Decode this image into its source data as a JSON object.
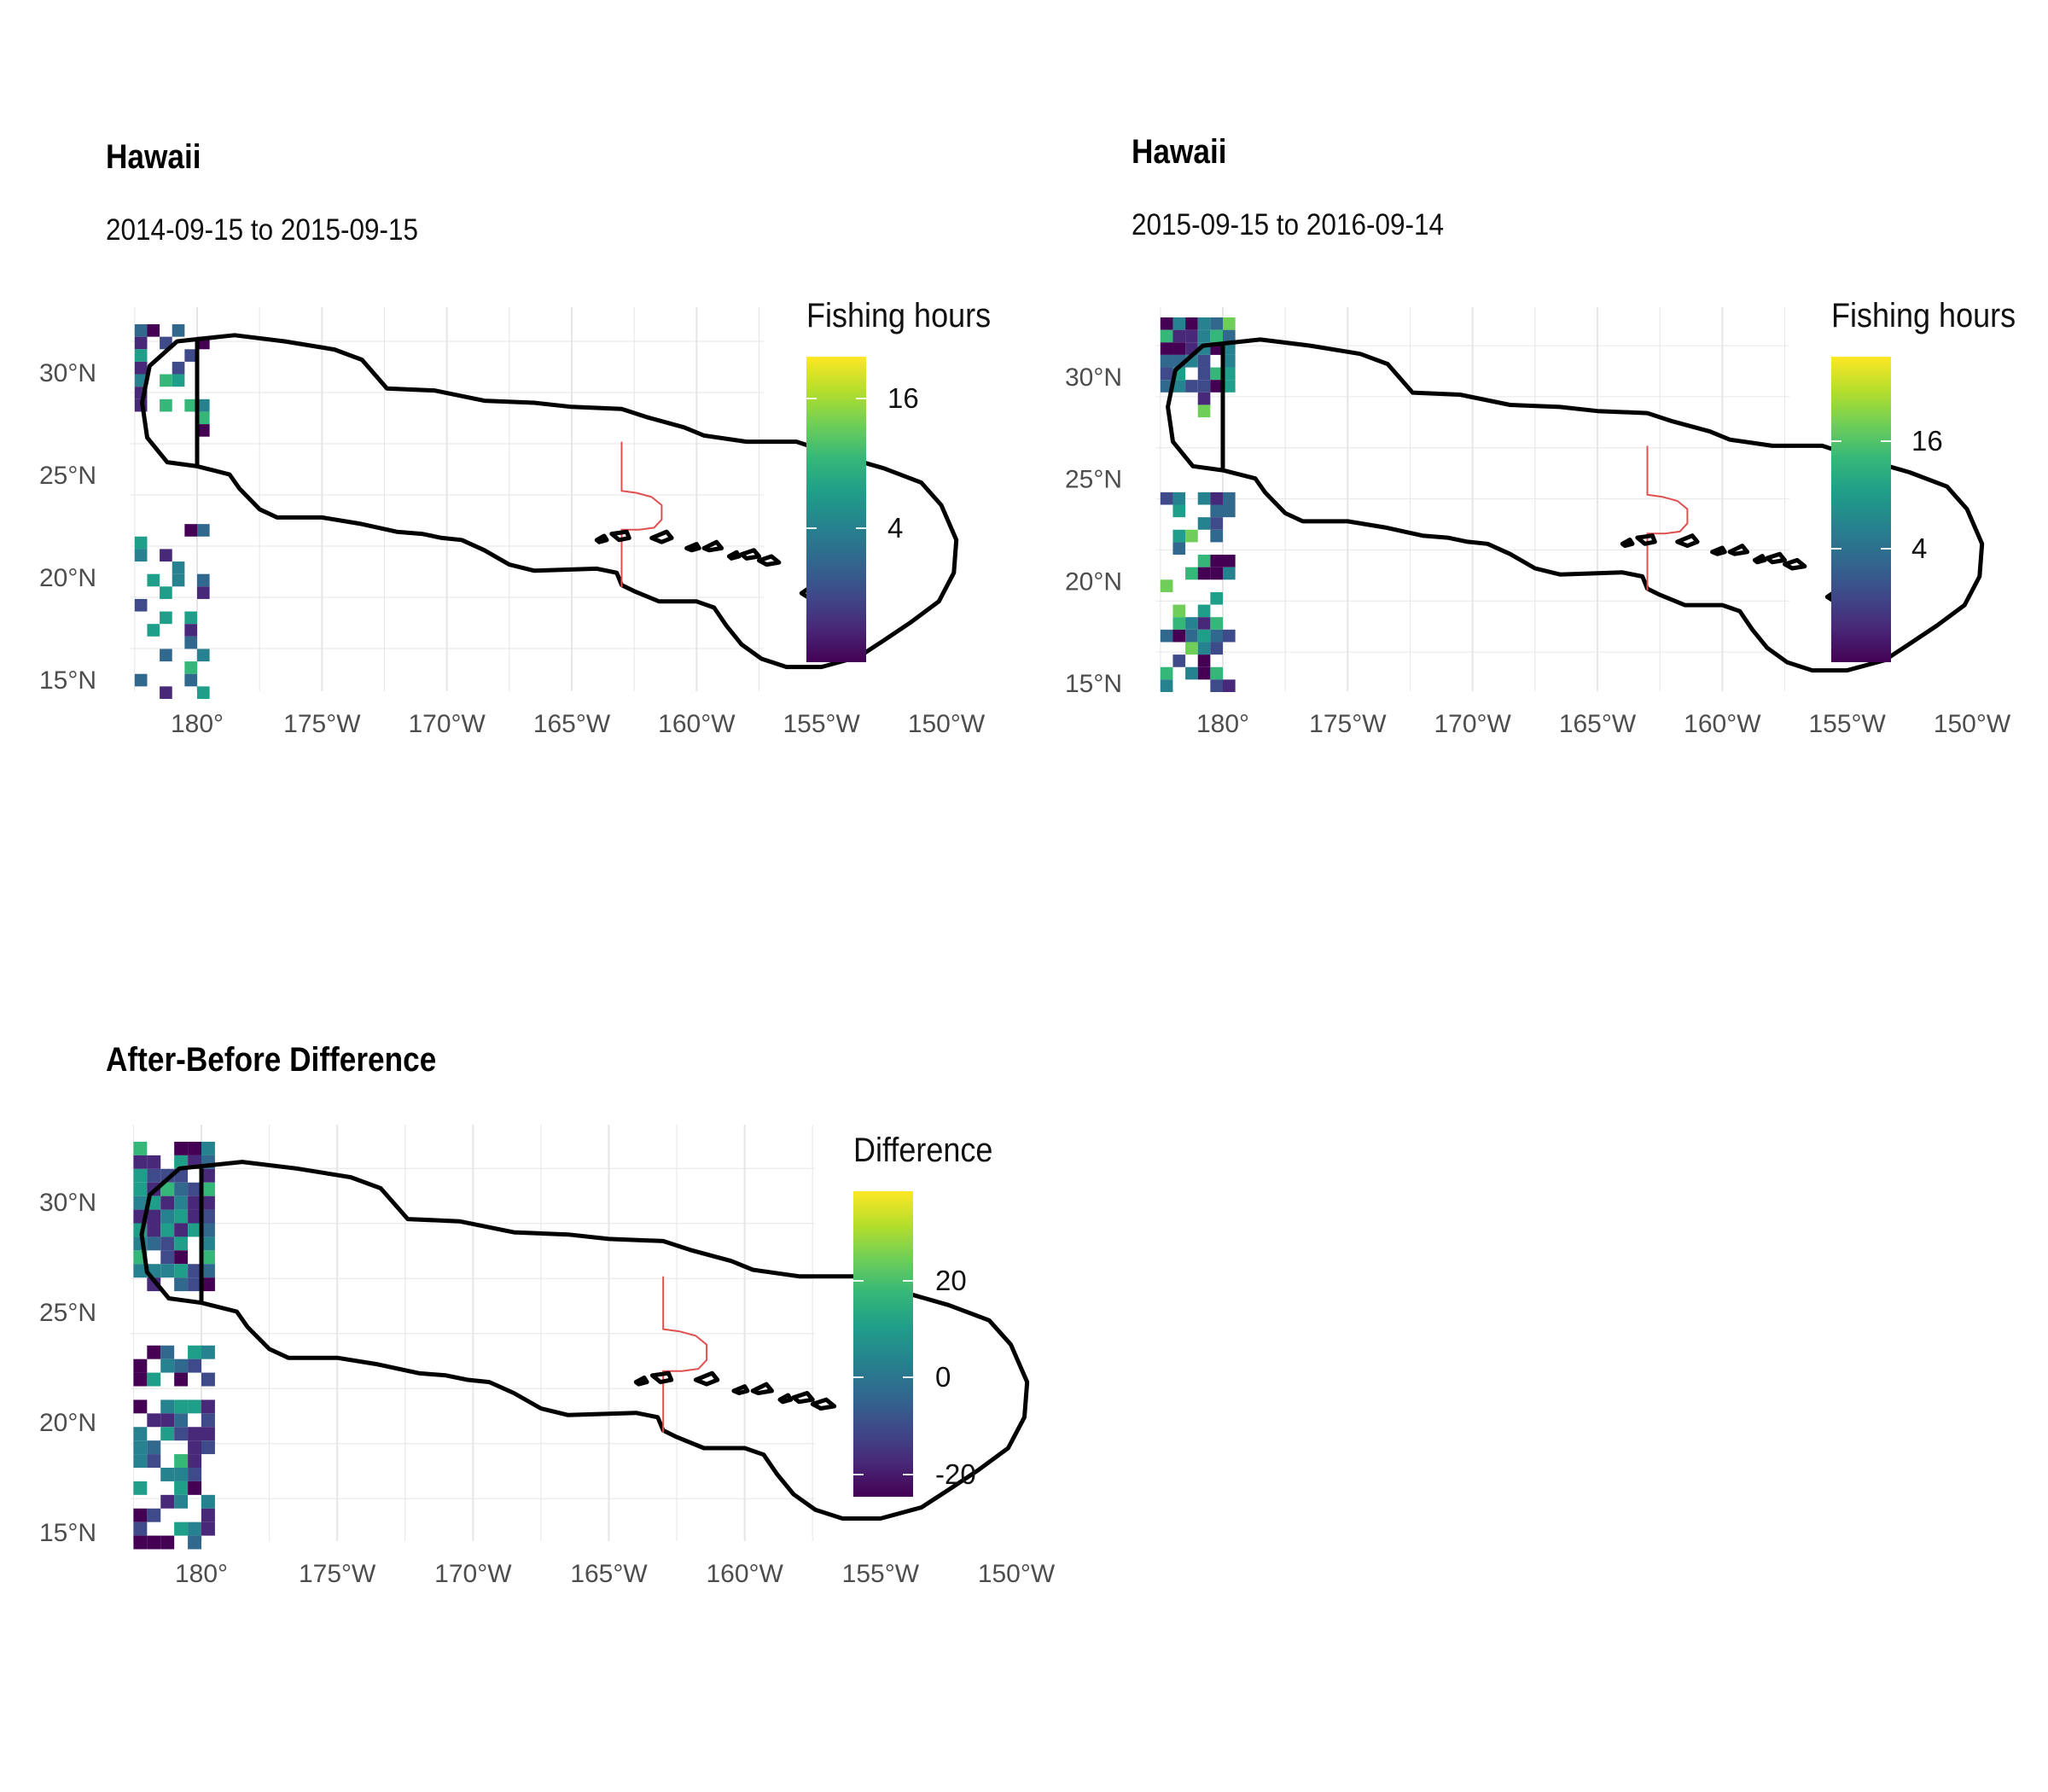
{
  "panels": [
    {
      "title": "Hawaii",
      "subtitle": "2014-09-15 to 2015-09-15",
      "legend": {
        "title": "Fishing hours",
        "ticks": [
          "16",
          "4"
        ]
      }
    },
    {
      "title": "Hawaii",
      "subtitle": "2015-09-15 to 2016-09-14",
      "legend": {
        "title": "Fishing hours",
        "ticks": [
          "16",
          "4"
        ]
      }
    },
    {
      "title": "After-Before Difference",
      "legend": {
        "title": "Difference",
        "ticks": [
          "20",
          "0",
          "-20"
        ]
      }
    }
  ],
  "axes": {
    "x_ticks": [
      "180°",
      "175°W",
      "170°W",
      "165°W",
      "160°W",
      "155°W",
      "150°W"
    ],
    "y_ticks": [
      "30°N",
      "25°N",
      "20°N",
      "15°N"
    ]
  },
  "colors": {
    "boundary": "#000000",
    "inner_boundary": "#e05050",
    "grid": "#e6e6e6",
    "colormap": "viridis"
  }
}
